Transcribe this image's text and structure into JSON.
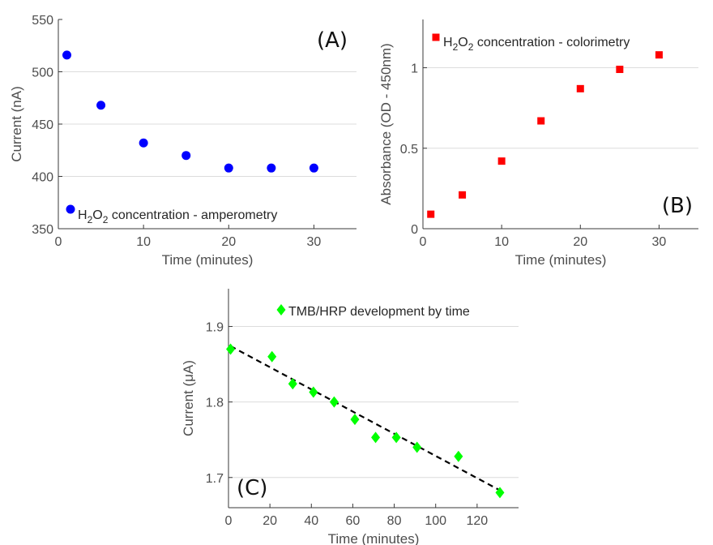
{
  "chart_data": [
    {
      "id": "A",
      "type": "scatter",
      "panel_label": "(A)",
      "xlabel": "Time (minutes)",
      "ylabel": "Current (nA)",
      "xlim": [
        0,
        35
      ],
      "ylim": [
        350,
        550
      ],
      "xticks": [
        0,
        10,
        20,
        30
      ],
      "yticks": [
        350,
        400,
        450,
        500,
        550
      ],
      "grid": "horizontal",
      "legend_position": "bottom-left",
      "series": [
        {
          "legend_parts": [
            "H",
            "2",
            "O",
            "2",
            " concentration - amperometry"
          ],
          "color": "#0000ff",
          "marker": "circle",
          "x": [
            1,
            5,
            10,
            15,
            20,
            25,
            30
          ],
          "y": [
            516,
            468,
            432,
            420,
            408,
            408,
            408
          ]
        }
      ]
    },
    {
      "id": "B",
      "type": "scatter",
      "panel_label": "(B)",
      "xlabel": "Time (minutes)",
      "ylabel": "Absorbance (OD - 450nm)",
      "xlim": [
        0,
        35
      ],
      "ylim": [
        0,
        1.3
      ],
      "xticks": [
        0,
        10,
        20,
        30
      ],
      "yticks": [
        0,
        0.5,
        1
      ],
      "grid": "horizontal",
      "legend_position": "top-left",
      "series": [
        {
          "legend_parts": [
            "H",
            "2",
            "O",
            "2",
            " concentration - colorimetry"
          ],
          "color": "#ff0000",
          "marker": "square",
          "x": [
            1,
            5,
            10,
            15,
            20,
            25,
            30
          ],
          "y": [
            0.09,
            0.21,
            0.42,
            0.67,
            0.87,
            0.99,
            1.08
          ]
        }
      ]
    },
    {
      "id": "C",
      "type": "scatter",
      "panel_label": "(C)",
      "xlabel": "Time (minutes)",
      "ylabel": "Current (μA)",
      "xlim": [
        0,
        140
      ],
      "ylim": [
        1.66,
        1.95
      ],
      "xticks": [
        0,
        20,
        40,
        60,
        80,
        100,
        120
      ],
      "yticks": [
        1.7,
        1.8,
        1.9
      ],
      "grid": "horizontal",
      "legend_position": "top-right",
      "series": [
        {
          "name": "TMB/HRP development by time",
          "color": "#00ff00",
          "marker": "diamond",
          "x": [
            1,
            21,
            31,
            41,
            51,
            61,
            71,
            81,
            91,
            111,
            131
          ],
          "y": [
            1.87,
            1.86,
            1.824,
            1.813,
            1.8,
            1.777,
            1.753,
            1.753,
            1.74,
            1.728,
            1.68
          ]
        }
      ],
      "fit_line": {
        "style": "dashed",
        "color": "#000000",
        "x": [
          1,
          131
        ],
        "y": [
          1.874,
          1.683
        ]
      }
    }
  ]
}
